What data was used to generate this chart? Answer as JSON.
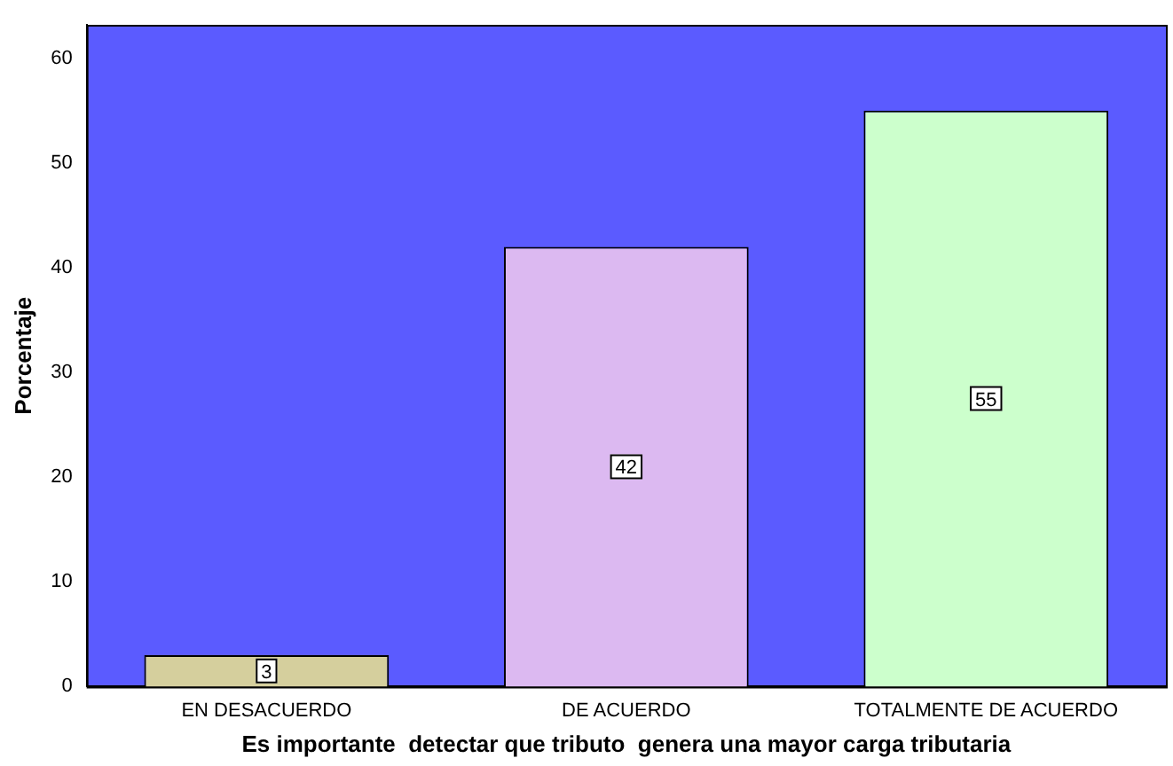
{
  "chart_data": {
    "type": "bar",
    "xlabel": "Es importante  detectar que tributo  genera una mayor carga tributaria",
    "ylabel": "Porcentaje",
    "categories": [
      "EN DESACUERDO",
      "DE ACUERDO",
      "TOTALMENTE DE ACUERDO"
    ],
    "values": [
      3,
      42,
      55
    ],
    "colors": [
      "#d5cf9d",
      "#dcb9f1",
      "#ccffcc"
    ],
    "ylim": [
      0,
      63.2
    ],
    "yticks": [
      0,
      10,
      20,
      30,
      40,
      50,
      60
    ],
    "grid": false,
    "legend": false,
    "data_labels": true
  }
}
